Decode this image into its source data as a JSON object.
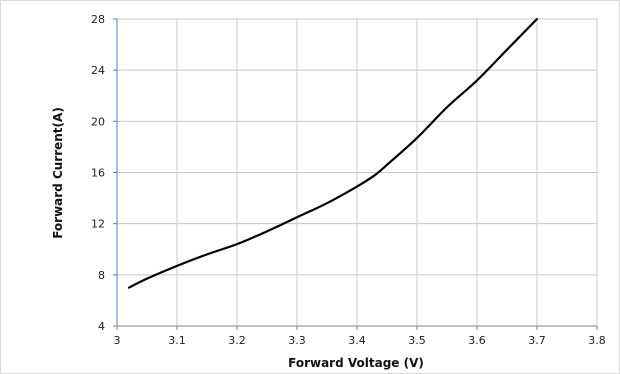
{
  "chart_data": {
    "type": "line",
    "title": "",
    "xlabel": "Forward Voltage (V)",
    "ylabel": "Forward Current(A)",
    "xlim": [
      3,
      3.8
    ],
    "ylim": [
      4,
      28
    ],
    "x_ticks": [
      3,
      3.1,
      3.2,
      3.3,
      3.4,
      3.5,
      3.6,
      3.7,
      3.8
    ],
    "x_tick_labels": [
      "3",
      "3.1",
      "3.2",
      "3.3",
      "3.4",
      "3.5",
      "3.6",
      "3.7",
      "3.8"
    ],
    "y_ticks": [
      4,
      8,
      12,
      16,
      20,
      24,
      28
    ],
    "y_tick_labels": [
      "4",
      "8",
      "12",
      "16",
      "20",
      "24",
      "28"
    ],
    "grid": true,
    "legend": "none",
    "series": [
      {
        "color": "#000000",
        "x": [
          3.02,
          3.05,
          3.1,
          3.15,
          3.2,
          3.25,
          3.3,
          3.35,
          3.4,
          3.43,
          3.45,
          3.5,
          3.55,
          3.6,
          3.65,
          3.7
        ],
        "y": [
          7.0,
          7.7,
          8.7,
          9.6,
          10.4,
          11.4,
          12.5,
          13.6,
          14.9,
          15.8,
          16.6,
          18.7,
          21.1,
          23.2,
          25.6,
          28.0
        ]
      }
    ]
  },
  "colors": {
    "grid": "#c8c8c8",
    "y_axis": "#4f81bd",
    "x_axis": "#868686",
    "frame": "#d9d9d9"
  }
}
